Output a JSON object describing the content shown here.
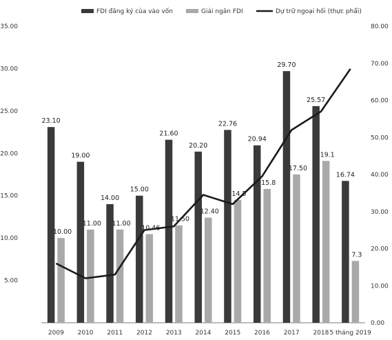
{
  "chart_data": {
    "type": "bar",
    "categories": [
      "2009",
      "2010",
      "2011",
      "2012",
      "2013",
      "2014",
      "2015",
      "2016",
      "2017",
      "2018",
      "5 tháng 2019"
    ],
    "series": [
      {
        "name": "FDI đăng ký của vào vốn",
        "axis": "left",
        "color": "#3a3a3a",
        "values": [
          23.1,
          19.0,
          14.0,
          15.0,
          21.6,
          20.2,
          22.76,
          20.94,
          29.7,
          25.57,
          16.74
        ],
        "labels": [
          "23.10",
          "19.00",
          "14.00",
          "15.00",
          "21.60",
          "20.20",
          "22.76",
          "20.94",
          "29.70",
          "25.57",
          "16.74"
        ]
      },
      {
        "name": "Giải ngân FDI",
        "axis": "left",
        "color": "#a9a9a9",
        "values": [
          10.0,
          11.0,
          11.0,
          10.46,
          11.5,
          12.4,
          14.5,
          15.8,
          17.5,
          19.1,
          7.3
        ],
        "labels": [
          "10.00",
          "11.00",
          "11.00",
          "10.46",
          "11.50",
          "12.40",
          "14.5",
          "15.8",
          "17.50",
          "19.1",
          "7.3"
        ]
      },
      {
        "name": "Dự trữ ngoại hối (thực phẩi)",
        "axis": "right",
        "type": "line",
        "color": "#1a1a1a",
        "values": [
          16.0,
          12.0,
          13.0,
          25.0,
          26.0,
          34.5,
          32.0,
          39.5,
          52.0,
          57.0,
          68.5
        ]
      }
    ],
    "y_left": {
      "ylim": [
        0,
        35
      ],
      "ticks": [
        "35.00",
        "30.00",
        "25.00",
        "20.00",
        "15.00",
        "10.00",
        "5.00",
        ""
      ]
    },
    "y_right": {
      "ylim": [
        0,
        80
      ],
      "ticks": [
        "80.00",
        "70.00",
        "60.00",
        "50.00",
        "40.00",
        "30.00",
        "20.00",
        "10.00",
        "0.00"
      ]
    },
    "legend": {
      "placement": "top-center"
    },
    "grid": false
  }
}
